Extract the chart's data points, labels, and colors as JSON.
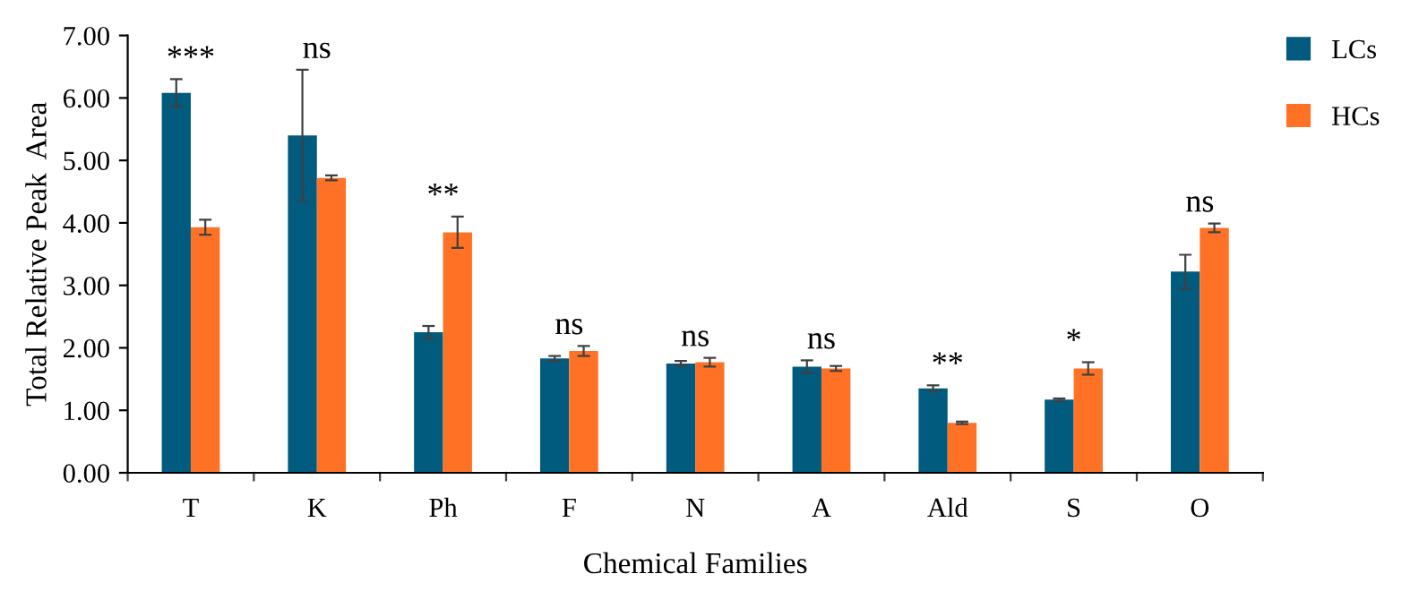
{
  "chart_data": {
    "type": "bar",
    "xlabel": "Chemical Families",
    "ylabel": "Total Relative Peak  Area",
    "categories": [
      "T",
      "K",
      "Ph",
      "F",
      "N",
      "A",
      "Ald",
      "S",
      "O"
    ],
    "series": [
      {
        "name": "LCs",
        "color": "#005b7f",
        "values": [
          6.08,
          5.4,
          2.25,
          1.83,
          1.75,
          1.7,
          1.35,
          1.17,
          3.22
        ],
        "errors": [
          0.22,
          1.05,
          0.1,
          0.04,
          0.04,
          0.1,
          0.05,
          0.02,
          0.27
        ]
      },
      {
        "name": "HCs",
        "color": "#ff7226",
        "values": [
          3.93,
          4.72,
          3.85,
          1.95,
          1.77,
          1.67,
          0.8,
          1.67,
          3.92
        ],
        "errors": [
          0.12,
          0.04,
          0.25,
          0.08,
          0.07,
          0.04,
          0.02,
          0.1,
          0.07
        ]
      }
    ],
    "ylim": [
      0,
      7
    ],
    "yticks": [
      {
        "value": 0,
        "label": "0.00"
      },
      {
        "value": 1,
        "label": "1.00"
      },
      {
        "value": 2,
        "label": "2.00"
      },
      {
        "value": 3,
        "label": "3.00"
      },
      {
        "value": 4,
        "label": "4.00"
      },
      {
        "value": 5,
        "label": "5.00"
      },
      {
        "value": 6,
        "label": "6.00"
      },
      {
        "value": 7,
        "label": "7.00"
      }
    ],
    "legend": "top right",
    "grid": false,
    "annotations": [
      "***",
      "ns",
      "**",
      "ns",
      "ns",
      "ns",
      "**",
      "*",
      "ns"
    ]
  }
}
